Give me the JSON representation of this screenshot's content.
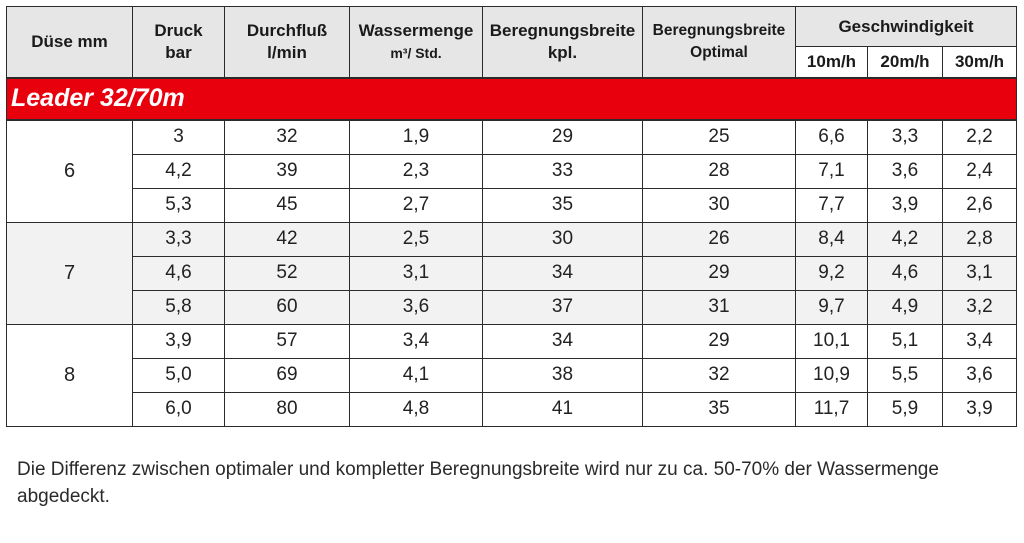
{
  "header": {
    "nozzle": "Düse mm",
    "pressure_line1": "Druck",
    "pressure_line2": "bar",
    "flow_line1": "Durchfluß",
    "flow_line2": "l/min",
    "water_line1": "Wassermenge",
    "water_line2": "m³/ Std.",
    "width_total_line1": "Beregnungsbreite",
    "width_total_line2": "kpl.",
    "width_opt_line1": "Beregnungsbreite",
    "width_opt_line2": "Optimal",
    "speed_group": "Geschwindigkeit",
    "speeds": [
      "10m/h",
      "20m/h",
      "30m/h"
    ]
  },
  "model_label": "Leader 32/70m",
  "groups": [
    {
      "nozzle": "6",
      "rows": [
        [
          "3",
          "32",
          "1,9",
          "29",
          "25",
          "6,6",
          "3,3",
          "2,2"
        ],
        [
          "4,2",
          "39",
          "2,3",
          "33",
          "28",
          "7,1",
          "3,6",
          "2,4"
        ],
        [
          "5,3",
          "45",
          "2,7",
          "35",
          "30",
          "7,7",
          "3,9",
          "2,6"
        ]
      ]
    },
    {
      "nozzle": "7",
      "rows": [
        [
          "3,3",
          "42",
          "2,5",
          "30",
          "26",
          "8,4",
          "4,2",
          "2,8"
        ],
        [
          "4,6",
          "52",
          "3,1",
          "34",
          "29",
          "9,2",
          "4,6",
          "3,1"
        ],
        [
          "5,8",
          "60",
          "3,6",
          "37",
          "31",
          "9,7",
          "4,9",
          "3,2"
        ]
      ]
    },
    {
      "nozzle": "8",
      "rows": [
        [
          "3,9",
          "57",
          "3,4",
          "34",
          "29",
          "10,1",
          "5,1",
          "3,4"
        ],
        [
          "5,0",
          "69",
          "4,1",
          "38",
          "32",
          "10,9",
          "5,5",
          "3,6"
        ],
        [
          "6,0",
          "80",
          "4,8",
          "41",
          "35",
          "11,7",
          "5,9",
          "3,9"
        ]
      ]
    }
  ],
  "footnote": "Die Differenz zwischen optimaler und kompletter Beregnungsbreite wird nur zu ca. 50-70% der Wassermenge abgedeckt.",
  "colors": {
    "header_bg": "#e6e6e6",
    "model_bar": "#e8000c",
    "speed_text": "#c8000a"
  }
}
